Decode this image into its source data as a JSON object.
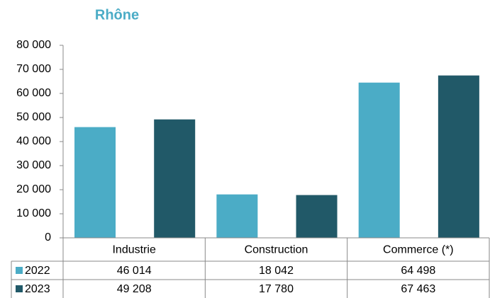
{
  "chart_data": {
    "type": "bar",
    "title": "Rhône",
    "categories": [
      "Industrie",
      "Construction",
      "Commerce (*)"
    ],
    "series": [
      {
        "name": "2022",
        "color": "#4bacc6",
        "values": [
          46014,
          18042,
          64498
        ],
        "value_labels": [
          "46 014",
          "18 042",
          "64 498"
        ]
      },
      {
        "name": "2023",
        "color": "#215968",
        "values": [
          49208,
          17780,
          67463
        ],
        "value_labels": [
          "49 208",
          "17 780",
          "67 463"
        ]
      }
    ],
    "ylim": [
      0,
      80000
    ],
    "yticks": [
      0,
      {
        "value": 10000,
        "label": "10 000"
      },
      {
        "value": 20000,
        "label": "20 000"
      },
      {
        "value": 30000,
        "label": "30 000"
      },
      {
        "value": 40000,
        "label": "40 000"
      },
      {
        "value": 50000,
        "label": "50 000"
      },
      {
        "value": 60000,
        "label": "60 000"
      },
      {
        "value": 70000,
        "label": "70 000"
      },
      {
        "value": 80000,
        "label": "80 000"
      }
    ],
    "grid": false
  }
}
